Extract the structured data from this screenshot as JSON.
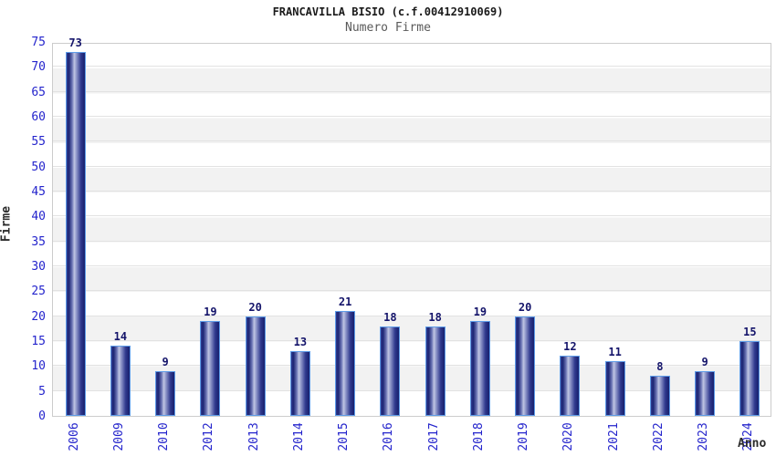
{
  "chart_data": {
    "type": "bar",
    "title": "FRANCAVILLA BISIO (c.f.00412910069)",
    "subtitle": "Numero Firme",
    "xlabel": "Anno",
    "ylabel": "Firme",
    "categories": [
      "2006",
      "2009",
      "2010",
      "2012",
      "2013",
      "2014",
      "2015",
      "2016",
      "2017",
      "2018",
      "2019",
      "2020",
      "2021",
      "2022",
      "2023",
      "2024"
    ],
    "values": [
      73,
      14,
      9,
      19,
      20,
      13,
      21,
      18,
      18,
      19,
      20,
      12,
      11,
      8,
      9,
      15
    ],
    "ylim": [
      0,
      75
    ],
    "y_ticks": [
      0,
      5,
      10,
      15,
      20,
      25,
      30,
      35,
      40,
      45,
      50,
      55,
      60,
      65,
      70,
      75
    ],
    "grid": true,
    "legend_position": "none",
    "colors": {
      "bar_dark": "#1b2472",
      "bar_light": "#c0c6e4",
      "bar_border": "#5e9ce8",
      "axis_text": "#2424cc",
      "value_text": "#14146a",
      "title_text": "#1a1a1a",
      "subtitle_text": "#5a5a5a",
      "axis_title_text": "#2b2b2b",
      "band": "#f2f2f2",
      "gridline": "#e2e2e2",
      "plot_border": "#cccccc",
      "background": "#ffffff"
    }
  }
}
